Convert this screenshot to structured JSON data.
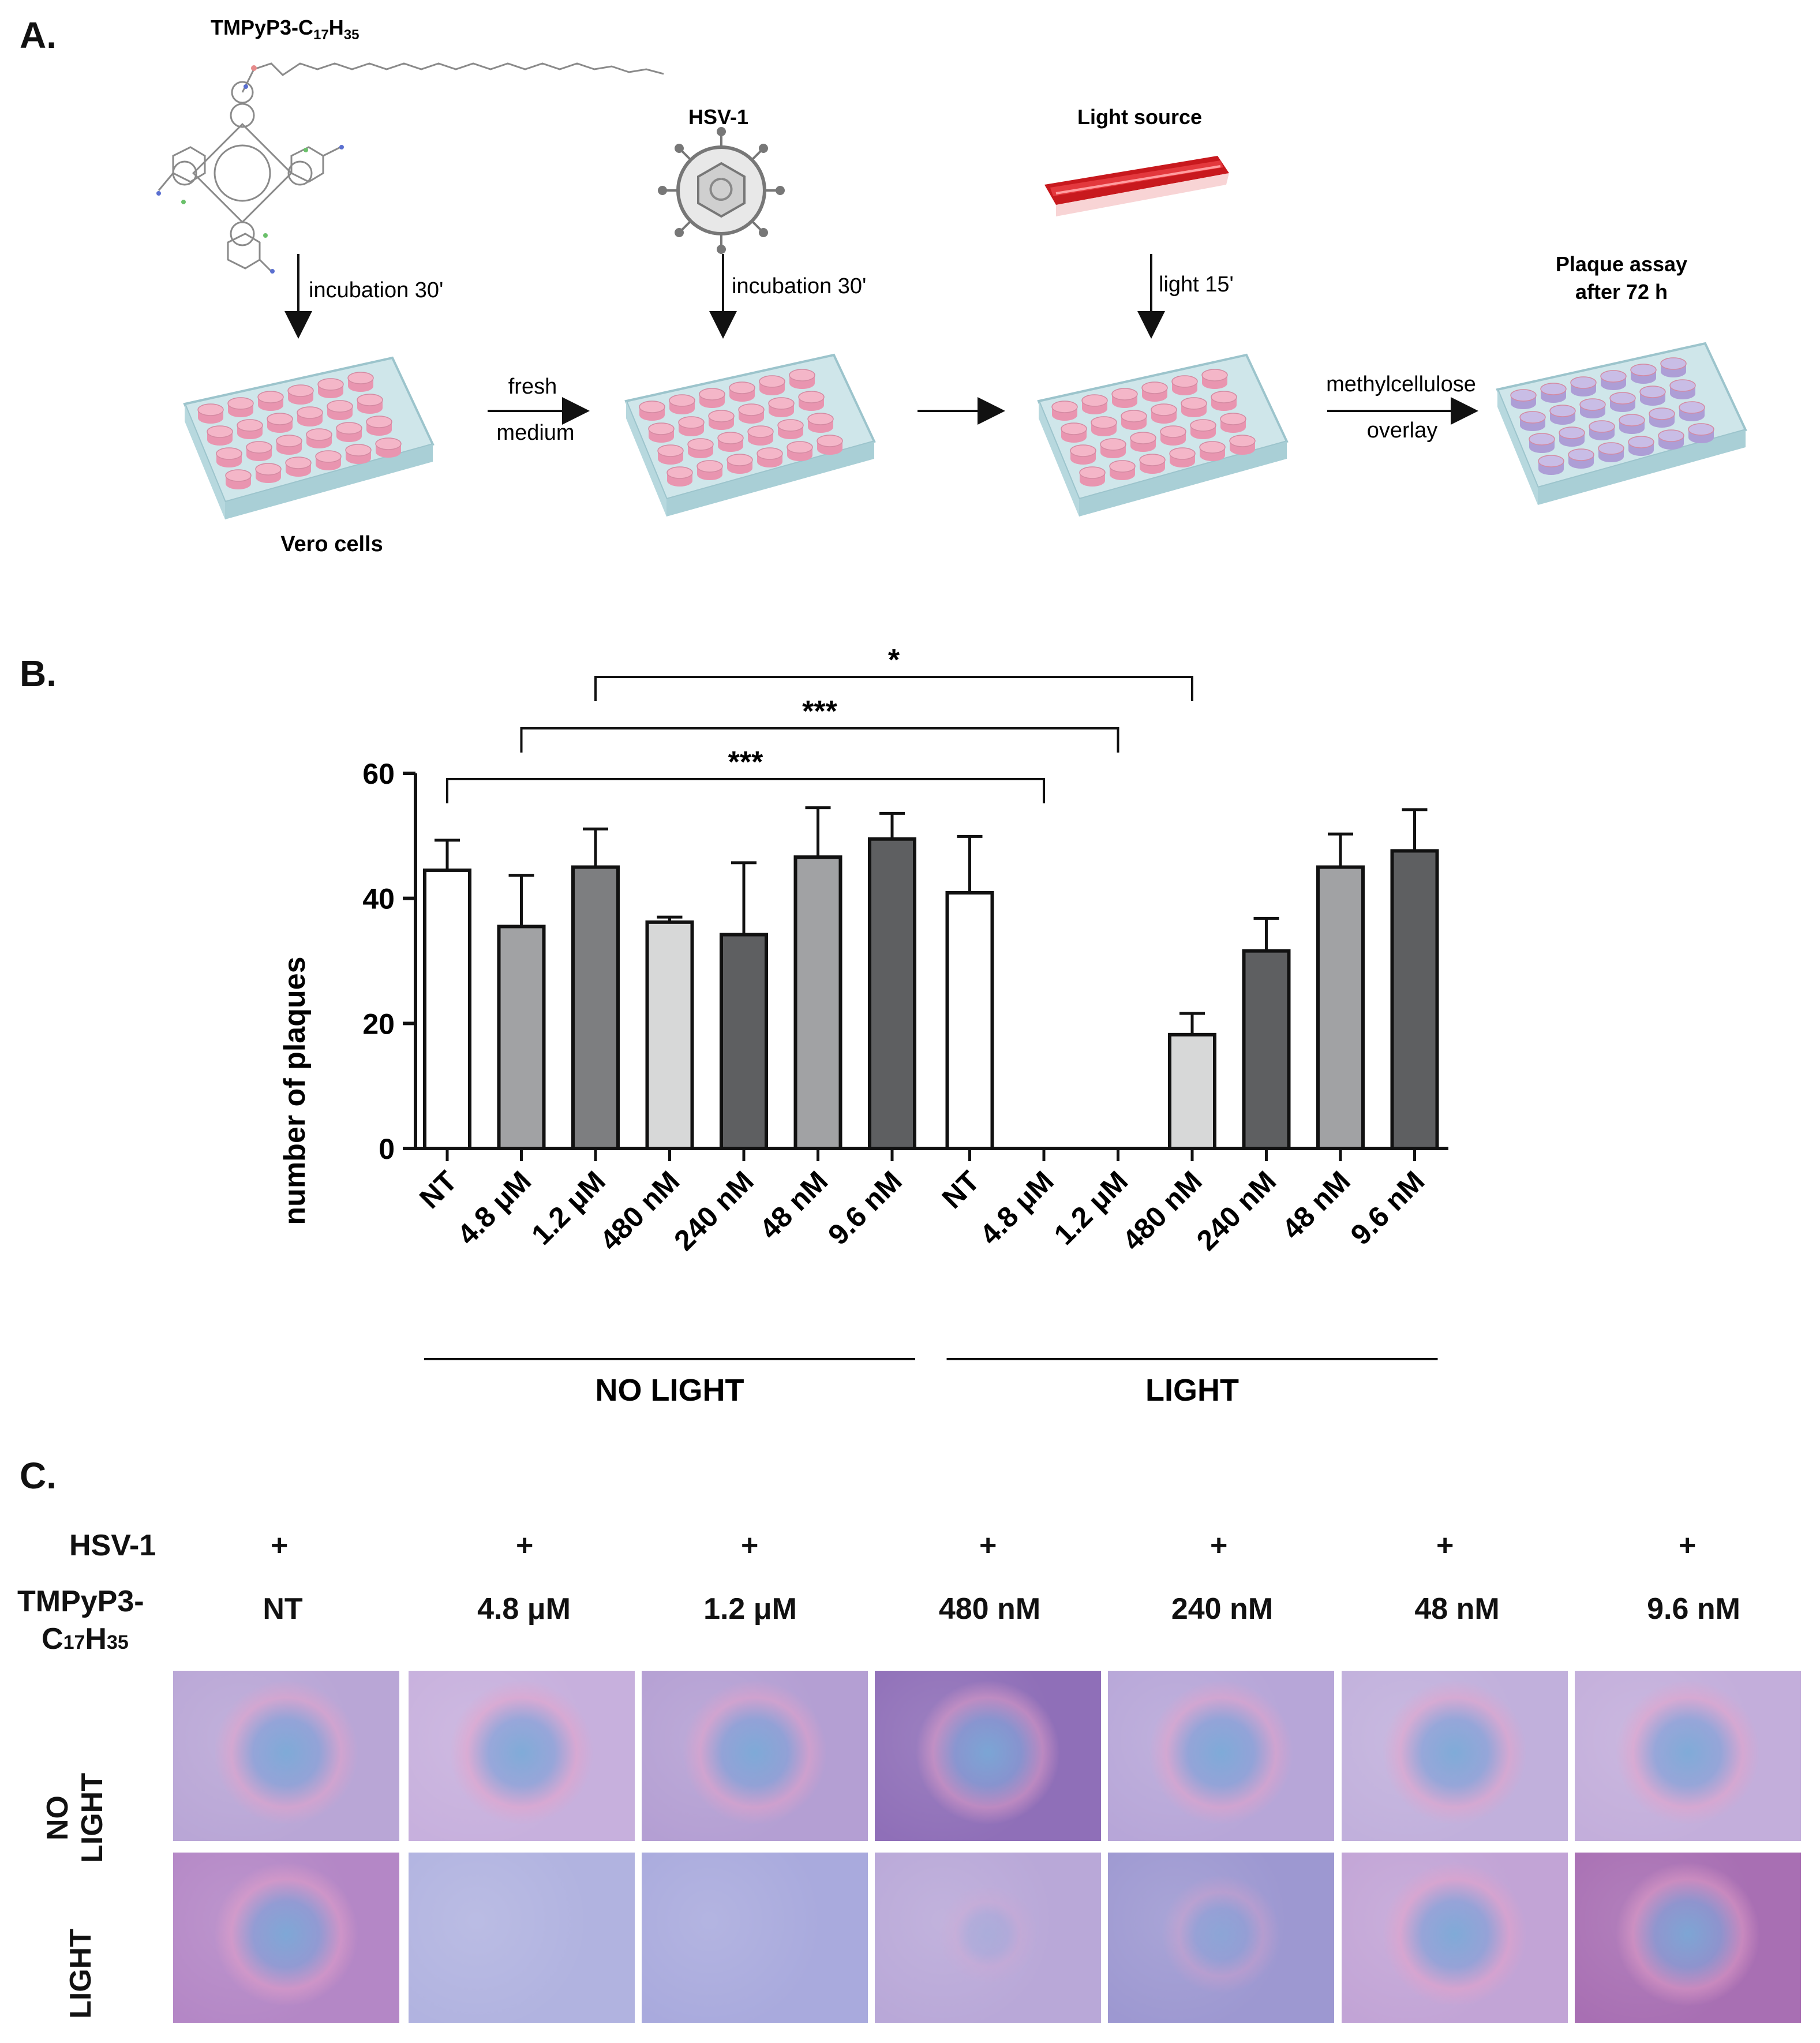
{
  "panels": {
    "a": "A.",
    "b": "B.",
    "c": "C."
  },
  "schematic": {
    "compound_label": "TMPyP3-C",
    "compound_sub1": "17",
    "compound_mid": "H",
    "compound_sub2": "35",
    "virus_label": "HSV-1",
    "light_label": "Light source",
    "plaque_label_line1": "Plaque assay",
    "plaque_label_line2": "after 72 h",
    "step1": "incubation 30'",
    "step2": "incubation 30'",
    "step3": "light 15'",
    "fresh1": "fresh",
    "fresh2": "medium",
    "overlay1": "methylcellulose",
    "overlay2": "overlay",
    "cells_label": "Vero cells"
  },
  "chart_data": {
    "type": "bar",
    "ylabel": "number of plaques",
    "ylim": [
      0,
      60
    ],
    "yticks": [
      0,
      20,
      40,
      60
    ],
    "categories": [
      "NT",
      "4.8 μM",
      "1.2 μM",
      "480 nM",
      "240 nM",
      "48 nM",
      "9.6 nM",
      "NT",
      "4.8 μM",
      "1.2 μM",
      "480 nM",
      "240 nM",
      "48 nM",
      "9.6 nM"
    ],
    "values": [
      44.5,
      35.5,
      45,
      36.2,
      34.2,
      46.6,
      49.5,
      40.9,
      0,
      0,
      18.2,
      31.6,
      45,
      47.6
    ],
    "errors": [
      4.8,
      8.2,
      6.1,
      0.8,
      11.5,
      7.9,
      4.1,
      9,
      0,
      0,
      3.4,
      5.2,
      5.3,
      6.6
    ],
    "colors": [
      "#ffffff",
      "#a1a2a4",
      "#7d7e80",
      "#d7d8d8",
      "#5e5f61",
      "#a1a2a4",
      "#5e5f61",
      "#ffffff",
      "#a1a2a4",
      "#7d7e80",
      "#d7d8d8",
      "#5e5f61",
      "#a1a2a4",
      "#5e5f61"
    ],
    "groups": [
      {
        "label": "NO LIGHT",
        "from": 0,
        "to": 6
      },
      {
        "label": "LIGHT",
        "from": 7,
        "to": 13
      }
    ],
    "significance": [
      {
        "from": 2,
        "to": 10,
        "label": "*"
      },
      {
        "from": 1,
        "to": 9,
        "label": "***"
      },
      {
        "from": 0,
        "to": 8,
        "label": "***"
      }
    ]
  },
  "grid": {
    "hsv_label": "HSV-1",
    "tmp_label_1": "TMPyP3-",
    "tmp_label_2_a": "C",
    "tmp_label_2_sub1": "17",
    "tmp_label_2_b": "H",
    "tmp_label_2_sub2": "35",
    "plus": "+",
    "columns": [
      "NT",
      "4.8 μM",
      "1.2 μM",
      "480 nM",
      "240 nM",
      "48 nM",
      "9.6 nM"
    ],
    "row_no_light_1": "NO",
    "row_no_light_2": "LIGHT",
    "row_light": "LIGHT",
    "plaque_present_no_light": [
      1,
      1,
      1,
      1,
      1,
      1,
      1
    ],
    "plaque_present_light": [
      1,
      0,
      0,
      0.3,
      0.6,
      1,
      1
    ]
  }
}
